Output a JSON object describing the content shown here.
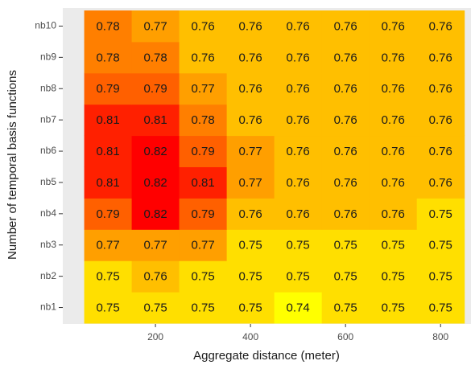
{
  "chart_data": {
    "type": "heatmap",
    "x_label": "Aggregate distance (meter)",
    "y_label": "Number of temporal basis functions",
    "x": [
      100,
      200,
      300,
      400,
      500,
      600,
      700,
      800
    ],
    "xlim": [
      5,
      864
    ],
    "xticks": [
      200,
      400,
      600,
      800
    ],
    "categories": [
      "nb1",
      "nb2",
      "nb3",
      "nb4",
      "nb5",
      "nb6",
      "nb7",
      "nb8",
      "nb9",
      "nb10"
    ],
    "values": [
      [
        0.75,
        0.75,
        0.75,
        0.75,
        0.74,
        0.75,
        0.75,
        0.75
      ],
      [
        0.75,
        0.76,
        0.75,
        0.75,
        0.75,
        0.75,
        0.75,
        0.75
      ],
      [
        0.77,
        0.77,
        0.77,
        0.75,
        0.75,
        0.75,
        0.75,
        0.75
      ],
      [
        0.79,
        0.82,
        0.79,
        0.76,
        0.76,
        0.76,
        0.76,
        0.75
      ],
      [
        0.81,
        0.82,
        0.81,
        0.77,
        0.76,
        0.76,
        0.76,
        0.76
      ],
      [
        0.81,
        0.82,
        0.79,
        0.77,
        0.76,
        0.76,
        0.76,
        0.76
      ],
      [
        0.81,
        0.81,
        0.78,
        0.76,
        0.76,
        0.76,
        0.76,
        0.76
      ],
      [
        0.79,
        0.79,
        0.77,
        0.76,
        0.76,
        0.76,
        0.76,
        0.76
      ],
      [
        0.78,
        0.78,
        0.76,
        0.76,
        0.76,
        0.76,
        0.76,
        0.76
      ],
      [
        0.78,
        0.77,
        0.76,
        0.76,
        0.76,
        0.76,
        0.76,
        0.76
      ]
    ],
    "color_low": "#ffff00",
    "color_high": "#ff0000"
  }
}
